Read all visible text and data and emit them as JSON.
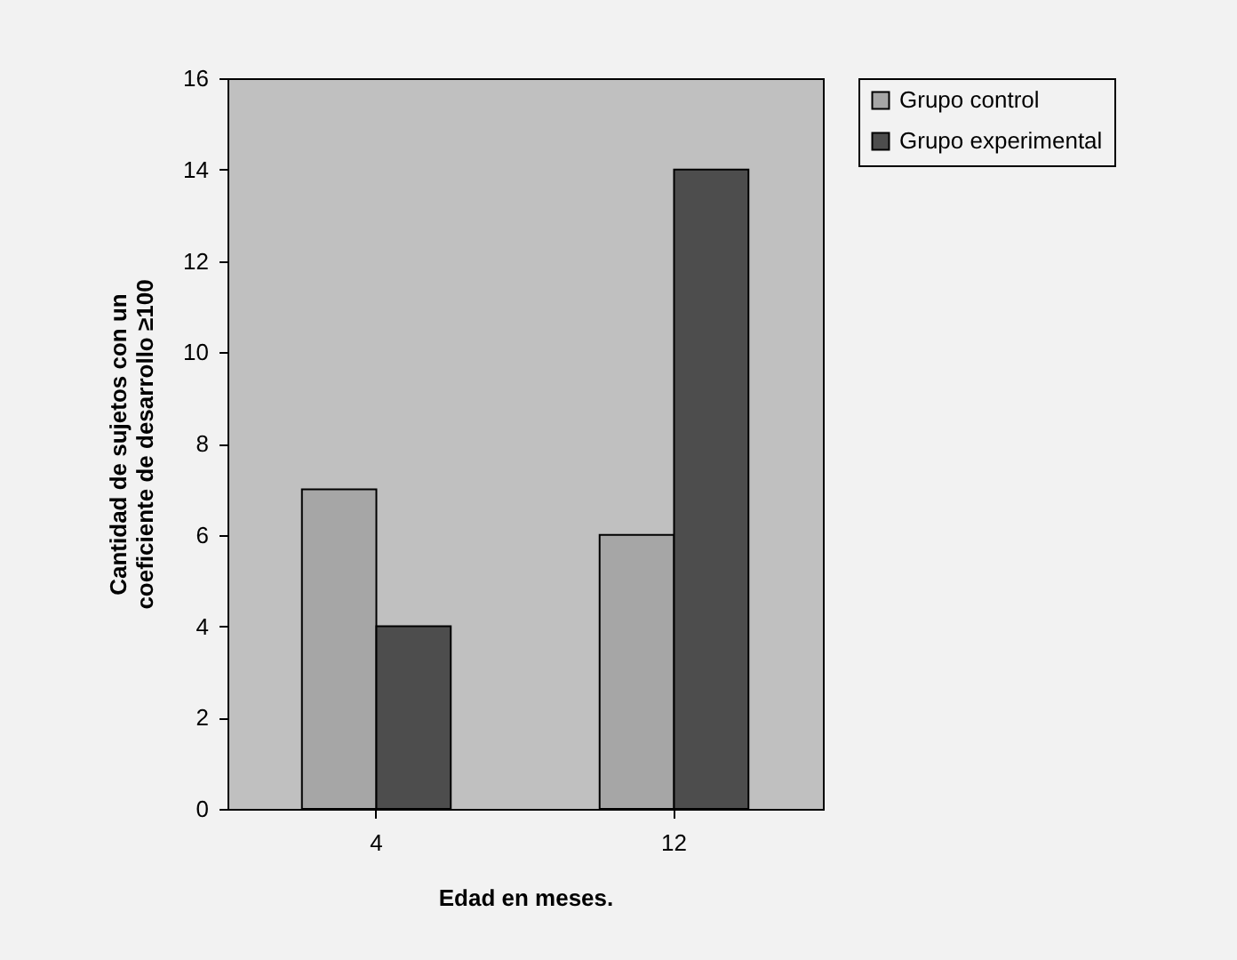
{
  "chart_data": {
    "type": "bar",
    "xlabel": "Edad en meses.",
    "ylabel": "Cantidad de sujetos con un coeficiente de desarrollo ≥100",
    "categories": [
      "4",
      "12"
    ],
    "series": [
      {
        "name": "Grupo control",
        "color": "#a6a6a6",
        "values": [
          7,
          6
        ]
      },
      {
        "name": "Grupo experimental",
        "color": "#4d4d4d",
        "values": [
          4,
          14
        ]
      }
    ],
    "ylim": [
      0,
      16
    ],
    "yticks": [
      0,
      2,
      4,
      6,
      8,
      10,
      12,
      14,
      16
    ],
    "grid": false,
    "legend": "right"
  }
}
